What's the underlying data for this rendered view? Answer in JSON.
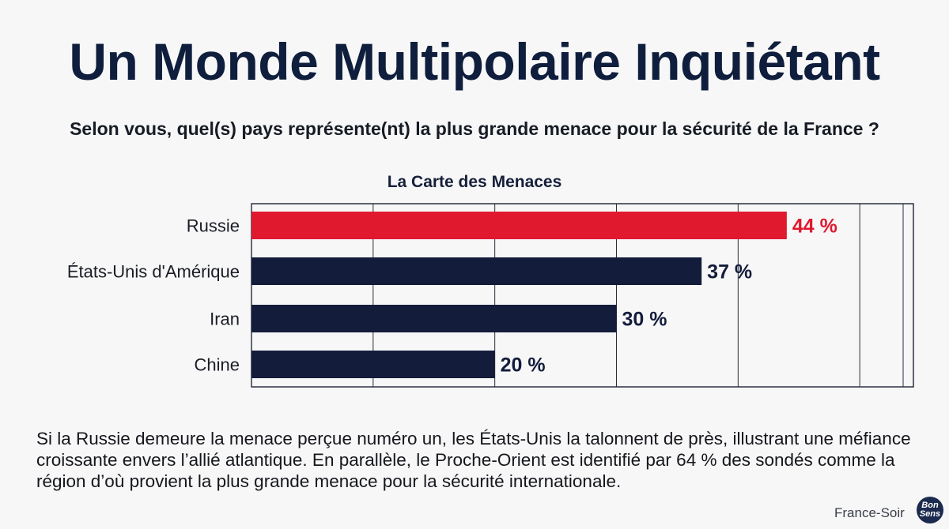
{
  "title": "Un Monde Multipolaire Inquiétant",
  "question": "Selon vous, quel(s) pays représente(nt) la plus grande menace pour la sécurité de la France ?",
  "summary": "Si la Russie demeure la menace perçue numéro un, les États-Unis la talonnent de près, illustrant une méfiance croissante envers l’allié atlantique. En parallèle, le Proche-Orient est identifié par 64 % des sondés comme la région d’où provient la plus grande menace pour la sécurité internationale.",
  "footer": {
    "brand": "France-Soir",
    "logo_text": "Bon Sens"
  },
  "colors": {
    "highlight": "#e0192f",
    "bar": "#141c3b",
    "title": "#0f1e3c"
  },
  "chart_data": {
    "type": "bar",
    "orientation": "horizontal",
    "title": "La Carte des Menaces",
    "categories": [
      "Russie",
      "États-Unis d'Amérique",
      "Iran",
      "Chine"
    ],
    "values": [
      44,
      37,
      30,
      20
    ],
    "value_labels": [
      "44 %",
      "37 %",
      "30 %",
      "20 %"
    ],
    "highlight_index": 0,
    "xlim": [
      0,
      52
    ],
    "grid": true
  }
}
